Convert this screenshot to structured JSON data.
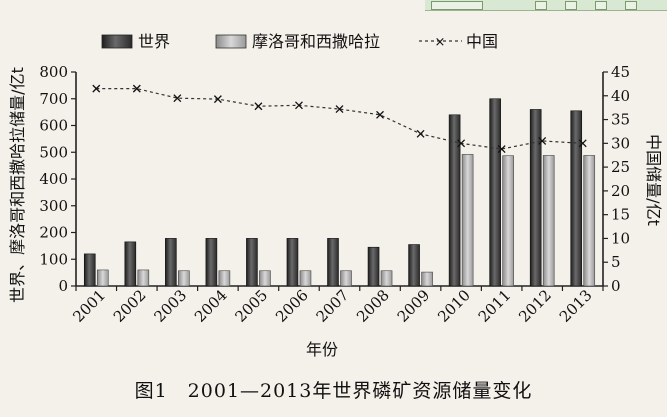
{
  "chart_data": {
    "type": "bar",
    "categories": [
      "2001",
      "2002",
      "2003",
      "2004",
      "2005",
      "2006",
      "2007",
      "2008",
      "2009",
      "2010",
      "2011",
      "2012",
      "2013"
    ],
    "series": [
      {
        "name": "世界",
        "axis": "left",
        "kind": "bar",
        "color": "#3a3a3a",
        "values": [
          120,
          165,
          178,
          178,
          178,
          178,
          178,
          145,
          155,
          640,
          700,
          660,
          655
        ]
      },
      {
        "name": "摩洛哥和西撒哈拉",
        "axis": "left",
        "kind": "bar",
        "color": "#b8b8b8",
        "values": [
          60,
          60,
          57,
          57,
          57,
          57,
          57,
          57,
          52,
          492,
          487,
          488,
          488
        ]
      },
      {
        "name": "中国",
        "axis": "right",
        "kind": "line",
        "color": "#333333",
        "values": [
          41.5,
          41.5,
          39.5,
          39.3,
          37.8,
          38.0,
          37.2,
          36.0,
          32.0,
          30.0,
          28.8,
          30.5,
          30.0
        ]
      }
    ],
    "xlabel": "年份",
    "ylabel": "世界、摩洛哥和西撒哈拉储量/亿t",
    "ylabel_right": "中国储量/亿t",
    "ylim": [
      0,
      800
    ],
    "ylim_right": [
      0,
      45
    ],
    "yticks": [
      0,
      100,
      200,
      300,
      400,
      500,
      600,
      700,
      800
    ],
    "yticks_right": [
      0,
      5,
      10,
      15,
      20,
      25,
      30,
      35,
      40,
      45
    ],
    "legend_position": "top",
    "grid": false
  },
  "caption": "图1　2001—2013年世界磷矿资源储量变化"
}
